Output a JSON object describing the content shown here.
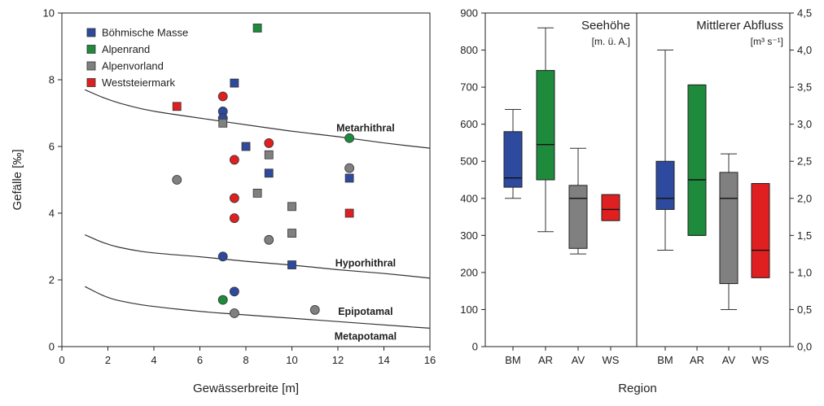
{
  "chart_data": [
    {
      "type": "scatter",
      "xlabel": "Gewässerbreite [m]",
      "ylabel": "Gefälle [‰]",
      "xlim": [
        0,
        16
      ],
      "ylim": [
        0,
        10
      ],
      "xticks": [
        "0",
        "2",
        "4",
        "6",
        "8",
        "10",
        "12",
        "14",
        "16"
      ],
      "yticks": [
        "0",
        "2",
        "4",
        "6",
        "8",
        "10"
      ],
      "legend": {
        "placement": "top-left"
      },
      "series": [
        {
          "name": "Böhmische Masse",
          "color": "#2e4a9e",
          "points": [
            {
              "x": 7.5,
              "y": 7.9,
              "shape": "square"
            },
            {
              "x": 7.0,
              "y": 7.05,
              "shape": "circle"
            },
            {
              "x": 7.0,
              "y": 6.85,
              "shape": "circle"
            },
            {
              "x": 8.0,
              "y": 6.0,
              "shape": "square"
            },
            {
              "x": 9.0,
              "y": 5.2,
              "shape": "square"
            },
            {
              "x": 12.5,
              "y": 5.05,
              "shape": "square"
            },
            {
              "x": 7.0,
              "y": 2.7,
              "shape": "circle"
            },
            {
              "x": 10.0,
              "y": 2.45,
              "shape": "square"
            },
            {
              "x": 7.5,
              "y": 1.65,
              "shape": "circle"
            }
          ]
        },
        {
          "name": "Alpenrand",
          "color": "#1e8a3c",
          "points": [
            {
              "x": 8.5,
              "y": 9.55,
              "shape": "square"
            },
            {
              "x": 12.5,
              "y": 6.25,
              "shape": "circle"
            },
            {
              "x": 7.0,
              "y": 1.4,
              "shape": "circle"
            }
          ]
        },
        {
          "name": "Alpenvorland",
          "color": "#808080",
          "points": [
            {
              "x": 7.0,
              "y": 6.7,
              "shape": "square"
            },
            {
              "x": 9.0,
              "y": 5.75,
              "shape": "square"
            },
            {
              "x": 5.0,
              "y": 5.0,
              "shape": "circle"
            },
            {
              "x": 12.5,
              "y": 5.35,
              "shape": "circle"
            },
            {
              "x": 8.5,
              "y": 4.6,
              "shape": "square"
            },
            {
              "x": 10.0,
              "y": 4.2,
              "shape": "square"
            },
            {
              "x": 10.0,
              "y": 3.4,
              "shape": "square"
            },
            {
              "x": 9.0,
              "y": 3.2,
              "shape": "circle"
            },
            {
              "x": 11.0,
              "y": 1.1,
              "shape": "circle"
            },
            {
              "x": 7.5,
              "y": 1.0,
              "shape": "circle"
            }
          ]
        },
        {
          "name": "Weststeiermark",
          "color": "#e02020",
          "points": [
            {
              "x": 5.0,
              "y": 7.2,
              "shape": "square"
            },
            {
              "x": 7.0,
              "y": 7.5,
              "shape": "circle"
            },
            {
              "x": 9.0,
              "y": 6.1,
              "shape": "circle"
            },
            {
              "x": 7.5,
              "y": 5.6,
              "shape": "circle"
            },
            {
              "x": 7.5,
              "y": 4.45,
              "shape": "circle"
            },
            {
              "x": 7.5,
              "y": 3.85,
              "shape": "circle"
            },
            {
              "x": 12.5,
              "y": 4.0,
              "shape": "square"
            }
          ]
        }
      ],
      "boundary_curves": [
        {
          "label": "Metarhithral",
          "x": [
            1,
            2,
            3,
            4,
            5,
            6,
            8,
            10,
            12,
            14,
            16
          ],
          "y": [
            7.7,
            7.4,
            7.2,
            7.05,
            6.95,
            6.85,
            6.65,
            6.45,
            6.3,
            6.1,
            5.95
          ]
        },
        {
          "label": "Hyporhithral",
          "x": [
            1,
            2,
            3,
            4,
            6,
            8,
            10,
            12,
            14,
            16
          ],
          "y": [
            3.35,
            3.05,
            2.9,
            2.8,
            2.7,
            2.55,
            2.45,
            2.3,
            2.2,
            2.05
          ]
        },
        {
          "label": "Epipotamal",
          "x": [
            1,
            2,
            3,
            4,
            6,
            8,
            10,
            12,
            14,
            16
          ],
          "y": [
            1.8,
            1.45,
            1.3,
            1.2,
            1.05,
            0.95,
            0.85,
            0.75,
            0.65,
            0.55
          ]
        }
      ],
      "zone_labels": [
        {
          "text": "Metarhithral",
          "x": 13.2,
          "y": 6.55
        },
        {
          "text": "Hyporhithral",
          "x": 13.2,
          "y": 2.5
        },
        {
          "text": "Epipotamal",
          "x": 13.2,
          "y": 1.05
        },
        {
          "text": "Metapotamal",
          "x": 13.2,
          "y": 0.3
        }
      ]
    },
    {
      "type": "box",
      "xlabel": "Region",
      "categories": [
        "BM",
        "AR",
        "AV",
        "WS",
        "BM",
        "AR",
        "AV",
        "WS"
      ],
      "left_axis": {
        "ylim": [
          0,
          900
        ],
        "ticks": [
          "0",
          "100",
          "200",
          "300",
          "400",
          "500",
          "600",
          "700",
          "800",
          "900"
        ]
      },
      "right_axis": {
        "ylim": [
          0,
          4.5
        ],
        "ticks": [
          "0,0",
          "0,5",
          "1,0",
          "1,5",
          "2,0",
          "2,5",
          "3,0",
          "3,5",
          "4,0",
          "4,5"
        ]
      },
      "panels": [
        {
          "title": "Seehöhe",
          "unit": "[m. ü. A.]",
          "axis": "left",
          "boxes": [
            {
              "category": "BM",
              "color": "#2e4a9e",
              "min": 400,
              "q1": 430,
              "median": 455,
              "q3": 580,
              "max": 640
            },
            {
              "category": "AR",
              "color": "#1e8a3c",
              "min": 310,
              "q1": 450,
              "median": 545,
              "q3": 745,
              "max": 860
            },
            {
              "category": "AV",
              "color": "#808080",
              "min": 250,
              "q1": 265,
              "median": 400,
              "q3": 435,
              "max": 535
            },
            {
              "category": "WS",
              "color": "#e02020",
              "min": 340,
              "q1": 340,
              "median": 370,
              "q3": 410,
              "max": 410
            }
          ]
        },
        {
          "title": "Mittlerer Abfluss",
          "unit": "[m³ s⁻¹]",
          "axis": "right",
          "boxes": [
            {
              "category": "BM",
              "color": "#2e4a9e",
              "min": 1.3,
              "q1": 1.85,
              "median": 2.0,
              "q3": 2.5,
              "max": 4.0
            },
            {
              "category": "AR",
              "color": "#1e8a3c",
              "min": 1.5,
              "q1": 1.5,
              "median": 2.25,
              "q3": 3.53,
              "max": 3.53
            },
            {
              "category": "AV",
              "color": "#808080",
              "min": 0.5,
              "q1": 0.85,
              "median": 2.0,
              "q3": 2.35,
              "max": 2.6
            },
            {
              "category": "WS",
              "color": "#e02020",
              "min": 0.93,
              "q1": 0.93,
              "median": 1.3,
              "q3": 2.2,
              "max": 2.2
            }
          ]
        }
      ]
    }
  ]
}
